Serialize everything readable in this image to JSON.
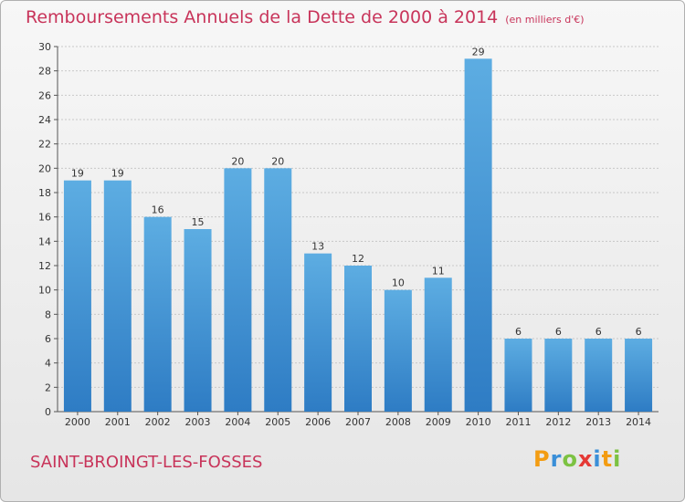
{
  "title": "Remboursements Annuels de la Dette de 2000 à 2014",
  "unit": "(en milliers d'€)",
  "commune": "SAINT-BROINGT-LES-FOSSES",
  "brand": {
    "letters": [
      "P",
      "r",
      "o",
      "x",
      "i",
      "t",
      "i"
    ],
    "colors": [
      "#f39c12",
      "#3a8fd8",
      "#7cc242",
      "#e53935",
      "#3a8fd8",
      "#f39c12",
      "#7cc242"
    ]
  },
  "colors": {
    "title": "#c8345a",
    "bar_light": "#5dade2",
    "bar_dark": "#2e7cc4",
    "grid": "#c8c8c8"
  },
  "chart_data": {
    "type": "bar",
    "categories": [
      "2000",
      "2001",
      "2002",
      "2003",
      "2004",
      "2005",
      "2006",
      "2007",
      "2008",
      "2009",
      "2010",
      "2011",
      "2012",
      "2013",
      "2014"
    ],
    "values": [
      19,
      19,
      16,
      15,
      20,
      20,
      13,
      12,
      10,
      11,
      29,
      6,
      6,
      6,
      6
    ],
    "yticks": [
      0,
      2,
      4,
      6,
      8,
      10,
      12,
      14,
      16,
      18,
      20,
      22,
      24,
      26,
      28,
      30
    ],
    "ylim": [
      0,
      30
    ],
    "grid": true,
    "data_labels": true
  }
}
